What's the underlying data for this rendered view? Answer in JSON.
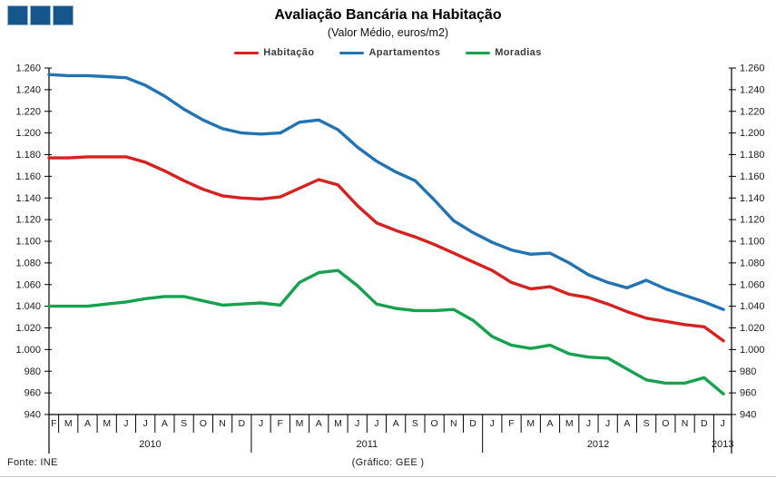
{
  "logo": {
    "color": "#15568D",
    "border": "#8FB3D1"
  },
  "header": {
    "title": "Avaliação Bancária na Habitação",
    "subtitle": "(Valor Médio, euros/m2)"
  },
  "legend": {
    "items": [
      {
        "label": "Habitação",
        "color": "#D7211F"
      },
      {
        "label": "Apartamentos",
        "color": "#2173B4"
      },
      {
        "label": "Moradias",
        "color": "#16A14D"
      }
    ]
  },
  "footer": {
    "source": "Fonte:  INE",
    "credit": "(Gráfico:  GEE )"
  },
  "chart_data": {
    "type": "line",
    "title": "Avaliação Bancária na Habitação",
    "subtitle": "(Valor Médio, euros/m2)",
    "unit": "euros/m2",
    "grid": false,
    "legend_position": "top",
    "x_months": [
      "F",
      "M",
      "A",
      "M",
      "J",
      "J",
      "A",
      "S",
      "O",
      "N",
      "D",
      "J",
      "F",
      "M",
      "A",
      "M",
      "J",
      "J",
      "A",
      "S",
      "O",
      "N",
      "D",
      "J",
      "F",
      "M",
      "A",
      "M",
      "J",
      "J",
      "A",
      "S",
      "O",
      "N",
      "D",
      "J"
    ],
    "year_groups": [
      {
        "label": "2010",
        "count": 11
      },
      {
        "label": "2011",
        "count": 12
      },
      {
        "label": "2012",
        "count": 12
      },
      {
        "label": "2013",
        "count": 1
      }
    ],
    "ylim": [
      940,
      1260
    ],
    "ytick_step": 20,
    "ytick_labels": [
      "1.260",
      "1.240",
      "1.220",
      "1.200",
      "1.180",
      "1.160",
      "1.140",
      "1.120",
      "1.100",
      "1.080",
      "1.060",
      "1.040",
      "1.020",
      "1.000",
      "980",
      "960",
      "940"
    ],
    "series": [
      {
        "name": "Habitação",
        "color": "#D7211F",
        "values": [
          1177,
          1177,
          1178,
          1178,
          1178,
          1173,
          1165,
          1156,
          1148,
          1142,
          1140,
          1139,
          1141,
          1149,
          1157,
          1152,
          1133,
          1117,
          1110,
          1104,
          1097,
          1089,
          1081,
          1073,
          1062,
          1056,
          1058,
          1051,
          1048,
          1042,
          1035,
          1029,
          1026,
          1023,
          1021,
          1008
        ]
      },
      {
        "name": "Apartamentos",
        "color": "#2173B4",
        "values": [
          1254,
          1253,
          1253,
          1252,
          1251,
          1244,
          1234,
          1222,
          1212,
          1204,
          1200,
          1199,
          1200,
          1210,
          1212,
          1203,
          1187,
          1174,
          1164,
          1156,
          1138,
          1119,
          1108,
          1099,
          1092,
          1088,
          1089,
          1080,
          1069,
          1062,
          1057,
          1064,
          1056,
          1050,
          1044,
          1037
        ]
      },
      {
        "name": "Moradias",
        "color": "#16A14D",
        "values": [
          1040,
          1040,
          1040,
          1042,
          1044,
          1047,
          1049,
          1049,
          1045,
          1041,
          1042,
          1043,
          1041,
          1062,
          1071,
          1073,
          1059,
          1042,
          1038,
          1036,
          1036,
          1037,
          1027,
          1012,
          1004,
          1001,
          1004,
          996,
          993,
          992,
          982,
          972,
          969,
          969,
          974,
          959
        ]
      }
    ]
  }
}
